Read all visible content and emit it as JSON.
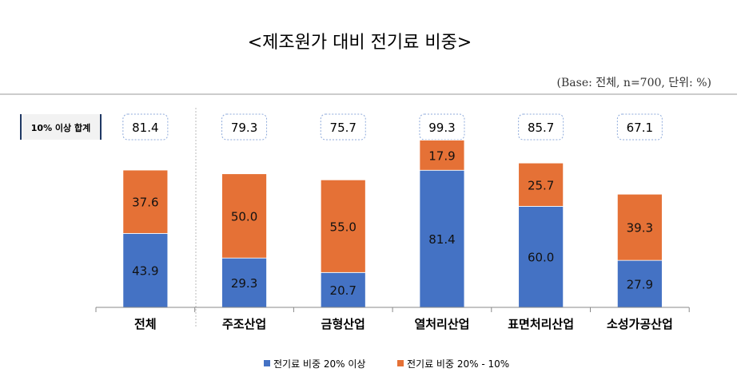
{
  "chart_data": {
    "type": "bar",
    "stacked": true,
    "title": "<제조원가 대비 전기료 비중>",
    "subtitle": "(Base: 전체, n=700, 단위: %)",
    "total_row_label": "10% 이상 합계",
    "categories": [
      "전체",
      "주조산업",
      "금형산업",
      "열처리산업",
      "표면처리산업",
      "소성가공산업"
    ],
    "totals": [
      "81.4",
      "79.3",
      "75.7",
      "99.3",
      "85.7",
      "67.1"
    ],
    "series": [
      {
        "name": "전기료 비중 20% 이상",
        "color": "#4472C4",
        "values": [
          43.9,
          29.3,
          20.7,
          81.4,
          60.0,
          27.9
        ]
      },
      {
        "name": "전기료 비중 20% - 10%",
        "color": "#E57136",
        "values": [
          37.6,
          50.0,
          55.0,
          17.9,
          25.7,
          39.3
        ]
      }
    ],
    "ylim": [
      0,
      100
    ],
    "grid": false,
    "legend_position": "bottom"
  }
}
